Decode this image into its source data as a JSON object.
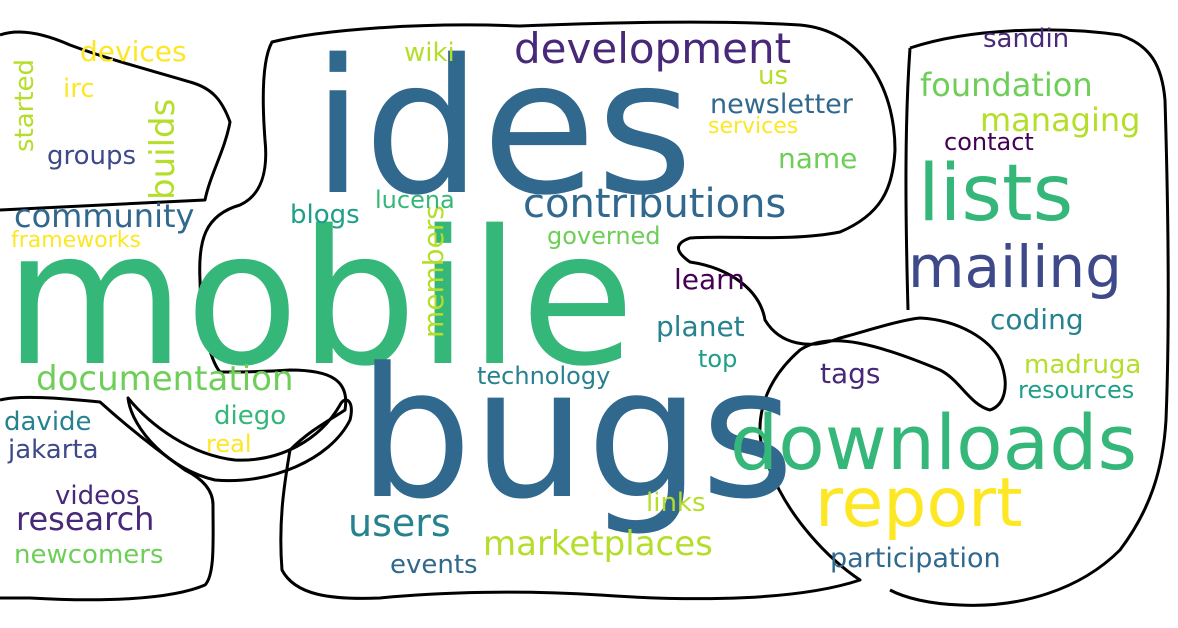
{
  "palette": {
    "yellow": "#fde725",
    "lime": "#b5de2b",
    "green_light": "#6ece58",
    "green": "#35b779",
    "teal_green": "#1f9e89",
    "teal": "#26828e",
    "blue": "#31688e",
    "indigo": "#3e4989",
    "purple": "#482878",
    "dark": "#440154"
  },
  "words": {
    "mobile": "mobile",
    "ides": "ides",
    "bugs": "bugs",
    "downloads": "downloads",
    "report": "report",
    "lists": "lists",
    "mailing": "mailing",
    "development": "development",
    "contributions": "contributions",
    "documentation": "documentation",
    "users": "users",
    "marketplaces": "marketplaces",
    "community": "community",
    "research": "research",
    "foundation": "foundation",
    "builds": "builds",
    "managing": "managing",
    "newsletter": "newsletter",
    "devices": "devices",
    "participation": "participation",
    "members": "members",
    "started": "started",
    "irc": "irc",
    "groups": "groups",
    "frameworks": "frameworks",
    "wiki": "wiki",
    "us": "us",
    "services": "services",
    "sandin": "sandin",
    "contact": "contact",
    "name": "name",
    "blogs": "blogs",
    "lucena": "lucena",
    "governed": "governed",
    "learn": "learn",
    "planet": "planet",
    "top": "top",
    "coding": "coding",
    "tags": "tags",
    "madruga": "madruga",
    "resources": "resources",
    "technology": "technology",
    "davide": "davide",
    "jakarta": "jakarta",
    "diego": "diego",
    "real": "real",
    "videos": "videos",
    "newcomers": "newcomers",
    "links": "links",
    "events": "events"
  }
}
